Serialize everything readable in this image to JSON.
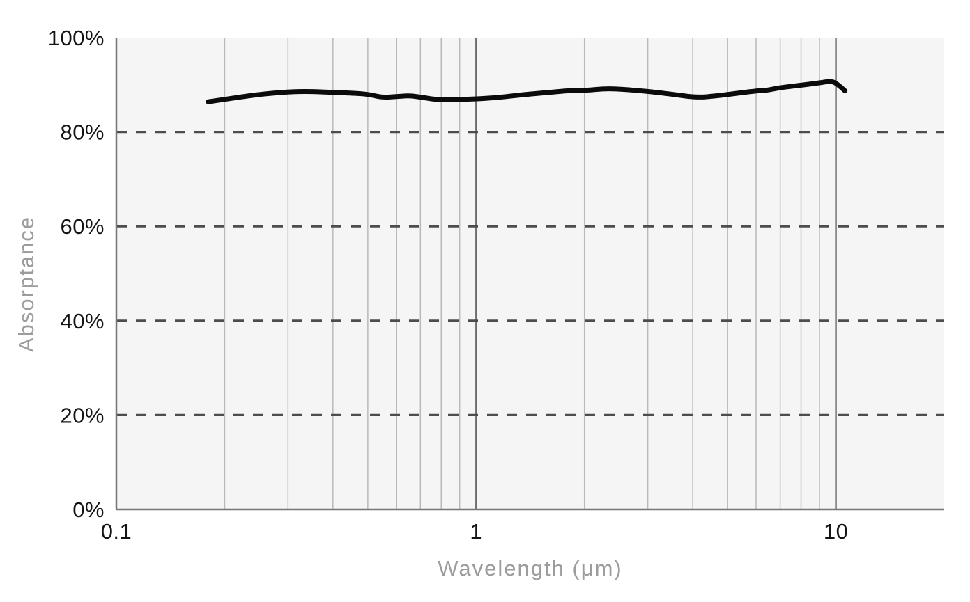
{
  "page": {
    "background": "#ffffff"
  },
  "chart_data": {
    "type": "line",
    "title": "",
    "xlabel": "Wavelength (μm)",
    "ylabel": "Absorptance",
    "x_scale": "log",
    "xlim": [
      0.1,
      20
    ],
    "ylim": [
      0,
      100
    ],
    "grid": true,
    "legend": false,
    "x_ticks": [
      {
        "value": 0.1,
        "label": "0.1"
      },
      {
        "value": 1,
        "label": "1"
      },
      {
        "value": 10,
        "label": "10"
      }
    ],
    "y_ticks": [
      {
        "value": 0,
        "label": "0%"
      },
      {
        "value": 20,
        "label": "20%"
      },
      {
        "value": 40,
        "label": "40%"
      },
      {
        "value": 60,
        "label": "60%"
      },
      {
        "value": 80,
        "label": "80%"
      },
      {
        "value": 100,
        "label": "100%"
      }
    ],
    "y_dashed_gridlines": [
      20,
      40,
      60,
      80
    ],
    "x_minor_gridlines": [
      0.2,
      0.3,
      0.4,
      0.5,
      0.6,
      0.7,
      0.8,
      0.9,
      2,
      3,
      4,
      5,
      6,
      7,
      8,
      9
    ],
    "x_major_gridlines": [
      1,
      10
    ],
    "series": [
      {
        "name": "Absorptance",
        "color": "#0b0b0b",
        "points": [
          [
            0.18,
            86.4
          ],
          [
            0.2,
            86.9
          ],
          [
            0.23,
            87.6
          ],
          [
            0.26,
            88.1
          ],
          [
            0.3,
            88.5
          ],
          [
            0.34,
            88.6
          ],
          [
            0.4,
            88.4
          ],
          [
            0.46,
            88.2
          ],
          [
            0.5,
            88.0
          ],
          [
            0.55,
            87.3
          ],
          [
            0.6,
            87.5
          ],
          [
            0.65,
            87.7
          ],
          [
            0.7,
            87.4
          ],
          [
            0.78,
            86.8
          ],
          [
            0.9,
            86.9
          ],
          [
            1.0,
            87.0
          ],
          [
            1.15,
            87.3
          ],
          [
            1.35,
            87.9
          ],
          [
            1.6,
            88.4
          ],
          [
            1.85,
            88.8
          ],
          [
            2.0,
            88.8
          ],
          [
            2.3,
            89.2
          ],
          [
            2.6,
            89.0
          ],
          [
            3.0,
            88.6
          ],
          [
            3.5,
            88.0
          ],
          [
            4.1,
            87.3
          ],
          [
            4.6,
            87.6
          ],
          [
            5.2,
            88.1
          ],
          [
            6.0,
            88.7
          ],
          [
            6.4,
            88.8
          ],
          [
            7.0,
            89.4
          ],
          [
            8.0,
            89.9
          ],
          [
            9.0,
            90.4
          ],
          [
            9.7,
            90.8
          ],
          [
            10.1,
            90.2
          ],
          [
            10.6,
            88.7
          ]
        ]
      }
    ]
  },
  "colors": {
    "plot_background": "#f5f5f5",
    "axis_line": "#76767a",
    "grid_minor": "#b9b9bd",
    "grid_major": "#6d6d71",
    "dashed_gridline": "#4d4d4d",
    "tick_label": "#141414",
    "axis_title": "#9e9b9b",
    "line": "#0b0b0b"
  }
}
